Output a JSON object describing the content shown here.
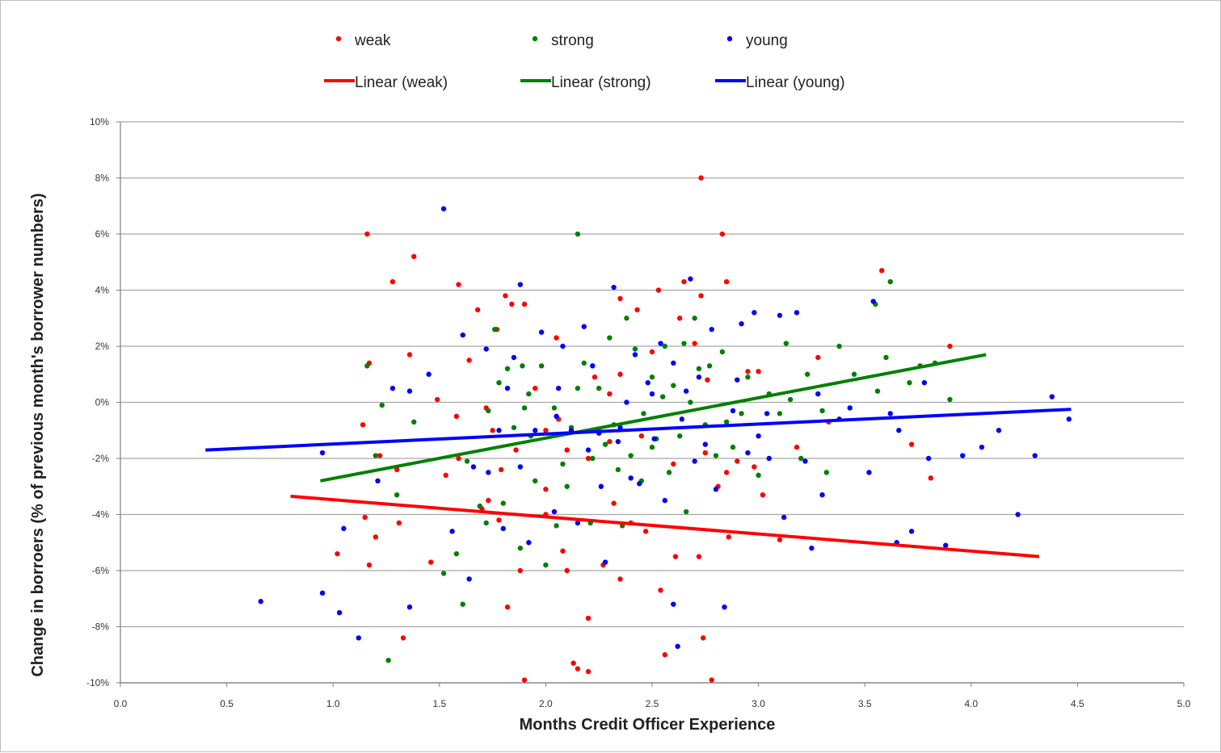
{
  "chart_data": {
    "type": "scatter",
    "title": "",
    "xlabel": "Months Credit Officer Experience",
    "ylabel": "Change in borroers (% of previous month's borrower numbers)",
    "xlim": [
      0,
      5
    ],
    "ylim": [
      -10,
      10
    ],
    "x_ticks": [
      "0.0",
      "0.5",
      "1.0",
      "1.5",
      "2.0",
      "2.5",
      "3.0",
      "3.5",
      "4.0",
      "4.5",
      "5.0"
    ],
    "x_tick_values": [
      0,
      0.5,
      1,
      1.5,
      2,
      2.5,
      3,
      3.5,
      4,
      4.5,
      5
    ],
    "y_ticks": [
      "10%",
      "8%",
      "6%",
      "4%",
      "2%",
      "0%",
      "-2%",
      "-4%",
      "-6%",
      "-8%",
      "-10%"
    ],
    "y_tick_values": [
      10,
      8,
      6,
      4,
      2,
      0,
      -2,
      -4,
      -6,
      -8,
      -10
    ],
    "grid": "horizontal",
    "legend_position": "top",
    "legend_rows": [
      [
        {
          "label": "weak",
          "kind": "marker",
          "color": "#ff0000"
        },
        {
          "label": "strong",
          "kind": "marker",
          "color": "#008000"
        },
        {
          "label": "young",
          "kind": "marker",
          "color": "#0000ff"
        }
      ],
      [
        {
          "label": "Linear (weak)",
          "kind": "line",
          "color": "#ff0000"
        },
        {
          "label": "Linear (strong)",
          "kind": "line",
          "color": "#008000"
        },
        {
          "label": "Linear (young)",
          "kind": "line",
          "color": "#0000ff"
        }
      ]
    ],
    "series": [
      {
        "name": "weak",
        "color": "#ff0000",
        "points": [
          [
            1.16,
            6.0
          ],
          [
            1.38,
            5.2
          ],
          [
            1.28,
            4.3
          ],
          [
            1.36,
            1.7
          ],
          [
            1.17,
            1.4
          ],
          [
            1.14,
            -0.8
          ],
          [
            1.22,
            -1.9
          ],
          [
            1.3,
            -2.4
          ],
          [
            1.15,
            -4.1
          ],
          [
            1.2,
            -4.8
          ],
          [
            1.02,
            -5.4
          ],
          [
            1.17,
            -5.8
          ],
          [
            1.31,
            -4.3
          ],
          [
            1.33,
            -8.4
          ],
          [
            1.46,
            -5.7
          ],
          [
            1.53,
            -2.6
          ],
          [
            1.49,
            0.1
          ],
          [
            1.59,
            4.2
          ],
          [
            1.58,
            -0.5
          ],
          [
            1.59,
            -2.0
          ],
          [
            1.64,
            1.5
          ],
          [
            1.68,
            3.3
          ],
          [
            1.72,
            -0.2
          ],
          [
            1.77,
            2.6
          ],
          [
            1.75,
            -1.0
          ],
          [
            1.73,
            -3.5
          ],
          [
            1.78,
            -4.2
          ],
          [
            1.81,
            3.8
          ],
          [
            1.84,
            3.5
          ],
          [
            1.79,
            -2.4
          ],
          [
            1.82,
            -7.3
          ],
          [
            1.88,
            -6.0
          ],
          [
            1.9,
            3.5
          ],
          [
            1.86,
            -1.7
          ],
          [
            1.9,
            -9.9
          ],
          [
            2.0,
            -4.0
          ],
          [
            2.06,
            -0.6
          ],
          [
            2.08,
            -5.3
          ],
          [
            2.1,
            -6.0
          ],
          [
            2.13,
            -9.3
          ],
          [
            2.15,
            -9.5
          ],
          [
            2.2,
            -9.6
          ],
          [
            2.2,
            -7.7
          ],
          [
            2.23,
            0.9
          ],
          [
            2.27,
            -5.8
          ],
          [
            2.32,
            -3.6
          ],
          [
            2.35,
            -6.3
          ],
          [
            2.35,
            3.7
          ],
          [
            2.43,
            3.3
          ],
          [
            2.47,
            -4.6
          ],
          [
            2.53,
            4.0
          ],
          [
            2.54,
            -6.7
          ],
          [
            2.56,
            -9.0
          ],
          [
            2.61,
            -5.5
          ],
          [
            2.63,
            3.0
          ],
          [
            2.65,
            4.3
          ],
          [
            2.73,
            8.0
          ],
          [
            2.74,
            -8.4
          ],
          [
            2.73,
            3.8
          ],
          [
            2.78,
            -9.9
          ],
          [
            2.83,
            6.0
          ],
          [
            2.85,
            4.3
          ],
          [
            2.86,
            -4.8
          ],
          [
            2.72,
            -5.5
          ],
          [
            2.76,
            0.8
          ],
          [
            2.81,
            -3.0
          ],
          [
            2.9,
            -2.1
          ],
          [
            2.95,
            1.1
          ],
          [
            2.98,
            -2.3
          ],
          [
            3.0,
            1.1
          ],
          [
            3.02,
            -3.3
          ],
          [
            3.1,
            -4.9
          ],
          [
            3.18,
            -1.6
          ],
          [
            3.28,
            1.6
          ],
          [
            3.33,
            -0.7
          ],
          [
            3.58,
            4.7
          ],
          [
            3.72,
            -1.5
          ],
          [
            3.81,
            -2.7
          ],
          [
            3.9,
            2.0
          ],
          [
            2.45,
            -1.2
          ],
          [
            2.3,
            -1.4
          ],
          [
            2.1,
            -1.7
          ],
          [
            2.0,
            -1.0
          ],
          [
            2.6,
            -2.2
          ],
          [
            2.4,
            -4.3
          ],
          [
            2.35,
            1.0
          ],
          [
            2.5,
            1.8
          ],
          [
            1.95,
            0.5
          ],
          [
            2.75,
            -1.8
          ],
          [
            2.05,
            2.3
          ],
          [
            1.7,
            -3.8
          ],
          [
            2.85,
            -2.5
          ],
          [
            2.7,
            2.1
          ],
          [
            2.0,
            -3.1
          ],
          [
            2.2,
            -2.0
          ],
          [
            2.3,
            0.3
          ]
        ]
      },
      {
        "name": "strong",
        "color": "#008000",
        "points": [
          [
            1.16,
            1.3
          ],
          [
            1.23,
            -0.1
          ],
          [
            1.2,
            -1.9
          ],
          [
            1.26,
            -9.2
          ],
          [
            1.3,
            -3.3
          ],
          [
            1.38,
            -0.7
          ],
          [
            1.52,
            -6.1
          ],
          [
            1.58,
            -5.4
          ],
          [
            1.61,
            -7.2
          ],
          [
            1.63,
            -2.1
          ],
          [
            1.69,
            -3.7
          ],
          [
            1.73,
            -0.3
          ],
          [
            1.76,
            2.6
          ],
          [
            1.78,
            0.7
          ],
          [
            1.82,
            1.2
          ],
          [
            1.85,
            -0.9
          ],
          [
            1.88,
            -5.2
          ],
          [
            1.89,
            1.3
          ],
          [
            1.92,
            0.3
          ],
          [
            1.93,
            -1.2
          ],
          [
            1.95,
            -2.8
          ],
          [
            2.0,
            -5.8
          ],
          [
            2.04,
            -0.2
          ],
          [
            2.08,
            -2.2
          ],
          [
            2.12,
            -0.9
          ],
          [
            2.15,
            6.0
          ],
          [
            2.18,
            1.4
          ],
          [
            2.21,
            -4.3
          ],
          [
            2.22,
            -2.0
          ],
          [
            2.25,
            0.5
          ],
          [
            2.28,
            -1.5
          ],
          [
            2.3,
            2.3
          ],
          [
            2.32,
            -0.8
          ],
          [
            2.34,
            -2.4
          ],
          [
            2.38,
            3.0
          ],
          [
            2.4,
            -1.9
          ],
          [
            2.42,
            1.9
          ],
          [
            2.46,
            -0.4
          ],
          [
            2.5,
            0.9
          ],
          [
            2.52,
            -1.3
          ],
          [
            2.56,
            2.0
          ],
          [
            2.58,
            -2.5
          ],
          [
            2.6,
            0.6
          ],
          [
            2.63,
            -1.2
          ],
          [
            2.66,
            -3.9
          ],
          [
            2.68,
            0.0
          ],
          [
            2.72,
            1.2
          ],
          [
            2.75,
            -0.8
          ],
          [
            2.77,
            1.3
          ],
          [
            2.8,
            -1.9
          ],
          [
            2.83,
            1.8
          ],
          [
            2.88,
            -1.6
          ],
          [
            2.92,
            -0.4
          ],
          [
            2.95,
            0.9
          ],
          [
            3.0,
            -2.6
          ],
          [
            3.05,
            0.3
          ],
          [
            3.1,
            -0.4
          ],
          [
            3.13,
            2.1
          ],
          [
            3.2,
            -2.0
          ],
          [
            3.23,
            1.0
          ],
          [
            3.3,
            -0.3
          ],
          [
            3.32,
            -2.5
          ],
          [
            3.38,
            2.0
          ],
          [
            3.45,
            1.0
          ],
          [
            3.55,
            3.5
          ],
          [
            3.56,
            0.4
          ],
          [
            3.62,
            4.3
          ],
          [
            3.6,
            1.6
          ],
          [
            3.71,
            0.7
          ],
          [
            3.76,
            1.3
          ],
          [
            3.83,
            1.4
          ],
          [
            3.9,
            0.1
          ],
          [
            1.72,
            -4.3
          ],
          [
            1.8,
            -3.6
          ],
          [
            2.1,
            -3.0
          ],
          [
            2.25,
            -1.0
          ],
          [
            2.45,
            -2.8
          ],
          [
            2.55,
            0.2
          ],
          [
            2.65,
            2.1
          ],
          [
            1.98,
            1.3
          ],
          [
            2.36,
            -4.4
          ],
          [
            2.7,
            3.0
          ],
          [
            2.5,
            -1.6
          ],
          [
            2.15,
            0.5
          ],
          [
            1.9,
            -0.2
          ],
          [
            2.05,
            -4.4
          ],
          [
            2.85,
            -0.7
          ],
          [
            3.15,
            0.1
          ]
        ]
      },
      {
        "name": "young",
        "color": "#0000ff",
        "points": [
          [
            0.66,
            -7.1
          ],
          [
            0.95,
            -1.8
          ],
          [
            0.95,
            -6.8
          ],
          [
            1.03,
            -7.5
          ],
          [
            1.05,
            -4.5
          ],
          [
            1.12,
            -8.4
          ],
          [
            1.21,
            -2.8
          ],
          [
            1.28,
            0.5
          ],
          [
            1.36,
            0.4
          ],
          [
            1.36,
            -7.3
          ],
          [
            1.45,
            1.0
          ],
          [
            1.52,
            6.9
          ],
          [
            1.56,
            -4.6
          ],
          [
            1.61,
            2.4
          ],
          [
            1.64,
            -6.3
          ],
          [
            1.66,
            -2.3
          ],
          [
            1.72,
            1.9
          ],
          [
            1.73,
            -2.5
          ],
          [
            1.78,
            -1.0
          ],
          [
            1.8,
            -4.5
          ],
          [
            1.82,
            0.5
          ],
          [
            1.88,
            4.2
          ],
          [
            1.88,
            -2.3
          ],
          [
            1.92,
            -5.0
          ],
          [
            1.95,
            -1.0
          ],
          [
            1.98,
            2.5
          ],
          [
            2.04,
            -3.9
          ],
          [
            2.06,
            0.5
          ],
          [
            2.08,
            2.0
          ],
          [
            2.12,
            -1.0
          ],
          [
            2.15,
            -4.3
          ],
          [
            2.18,
            2.7
          ],
          [
            2.2,
            -1.7
          ],
          [
            2.22,
            1.3
          ],
          [
            2.26,
            -3.0
          ],
          [
            2.28,
            -5.7
          ],
          [
            2.32,
            4.1
          ],
          [
            2.34,
            -1.4
          ],
          [
            2.38,
            0.0
          ],
          [
            2.4,
            -2.7
          ],
          [
            2.42,
            1.7
          ],
          [
            2.44,
            -2.9
          ],
          [
            2.48,
            0.7
          ],
          [
            2.51,
            -1.3
          ],
          [
            2.54,
            2.1
          ],
          [
            2.56,
            -3.5
          ],
          [
            2.6,
            -7.2
          ],
          [
            2.62,
            -8.7
          ],
          [
            2.64,
            -0.6
          ],
          [
            2.66,
            0.4
          ],
          [
            2.68,
            4.4
          ],
          [
            2.7,
            -2.1
          ],
          [
            2.72,
            0.9
          ],
          [
            2.75,
            -1.5
          ],
          [
            2.78,
            2.6
          ],
          [
            2.8,
            -3.1
          ],
          [
            2.84,
            -7.3
          ],
          [
            2.88,
            -0.3
          ],
          [
            2.92,
            2.8
          ],
          [
            2.95,
            -1.8
          ],
          [
            2.98,
            3.2
          ],
          [
            3.0,
            -1.2
          ],
          [
            3.04,
            -0.4
          ],
          [
            3.1,
            3.1
          ],
          [
            3.12,
            -4.1
          ],
          [
            3.18,
            3.2
          ],
          [
            3.22,
            -2.1
          ],
          [
            3.25,
            -5.2
          ],
          [
            3.28,
            0.3
          ],
          [
            3.3,
            -3.3
          ],
          [
            3.38,
            -0.6
          ],
          [
            3.43,
            -0.2
          ],
          [
            3.52,
            -2.5
          ],
          [
            3.54,
            3.6
          ],
          [
            3.62,
            -0.4
          ],
          [
            3.66,
            -1.0
          ],
          [
            3.72,
            -4.6
          ],
          [
            3.78,
            0.7
          ],
          [
            3.8,
            -2.0
          ],
          [
            3.88,
            -5.1
          ],
          [
            3.96,
            -1.9
          ],
          [
            4.05,
            -1.6
          ],
          [
            4.13,
            -1.0
          ],
          [
            4.22,
            -4.0
          ],
          [
            4.3,
            -1.9
          ],
          [
            4.38,
            0.2
          ],
          [
            4.46,
            -0.6
          ],
          [
            3.65,
            -5.0
          ],
          [
            2.35,
            -0.9
          ],
          [
            2.5,
            0.3
          ],
          [
            2.6,
            1.4
          ],
          [
            2.05,
            -0.5
          ],
          [
            1.85,
            1.6
          ],
          [
            2.25,
            -1.1
          ],
          [
            2.9,
            0.8
          ],
          [
            3.05,
            -2.0
          ]
        ]
      }
    ],
    "trendlines": [
      {
        "name": "Linear (weak)",
        "color": "#ff0000",
        "x": [
          0.8,
          4.32
        ],
        "y": [
          -3.35,
          -5.5
        ]
      },
      {
        "name": "Linear (strong)",
        "color": "#008000",
        "x": [
          0.94,
          4.07
        ],
        "y": [
          -2.8,
          1.7
        ]
      },
      {
        "name": "Linear (young)",
        "color": "#0000ff",
        "x": [
          0.4,
          4.47
        ],
        "y": [
          -1.7,
          -0.25
        ]
      }
    ]
  }
}
